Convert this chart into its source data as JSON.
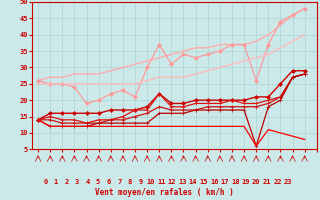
{
  "xlabel": "Vent moyen/en rafales ( km/h )",
  "xlim": [
    -0.5,
    23
  ],
  "ylim": [
    5,
    50
  ],
  "yticks": [
    5,
    10,
    15,
    20,
    25,
    30,
    35,
    40,
    45,
    50
  ],
  "xticks": [
    0,
    1,
    2,
    3,
    4,
    5,
    6,
    7,
    8,
    9,
    10,
    11,
    12,
    13,
    14,
    15,
    16,
    17,
    18,
    19,
    20,
    21,
    22,
    23
  ],
  "bg_color": "#cce9e9",
  "grid_color": "#aad4d4",
  "series": [
    {
      "label": "smooth_upper1",
      "color": "#ffaaaa",
      "lw": 1.0,
      "marker": null,
      "markersize": 0,
      "y": [
        26,
        27,
        27,
        28,
        28,
        28,
        29,
        30,
        31,
        32,
        33,
        34,
        35,
        36,
        36,
        37,
        37,
        37,
        38,
        40,
        43,
        46,
        48
      ]
    },
    {
      "label": "zigzag_light",
      "color": "#ff9999",
      "lw": 0.9,
      "marker": "D",
      "markersize": 2.0,
      "y": [
        26,
        25,
        25,
        24,
        19,
        20,
        22,
        23,
        21,
        30,
        37,
        31,
        34,
        33,
        34,
        35,
        37,
        37,
        26,
        37,
        44,
        46,
        48
      ]
    },
    {
      "label": "smooth_lower1",
      "color": "#ffbbbb",
      "lw": 1.0,
      "marker": null,
      "markersize": 0,
      "y": [
        25,
        25,
        25,
        25,
        25,
        25,
        25,
        25,
        25,
        26,
        27,
        27,
        27,
        28,
        29,
        30,
        31,
        32,
        33,
        34,
        36,
        38,
        40
      ]
    },
    {
      "label": "dark_rising",
      "color": "#cc0000",
      "lw": 1.0,
      "marker": "D",
      "markersize": 2.0,
      "y": [
        14,
        16,
        16,
        16,
        16,
        16,
        17,
        17,
        17,
        18,
        22,
        19,
        19,
        20,
        20,
        20,
        20,
        20,
        21,
        21,
        25,
        29,
        29
      ]
    },
    {
      "label": "dark_mid_zigzag",
      "color": "#dd1111",
      "lw": 0.9,
      "marker": "+",
      "markersize": 3.0,
      "y": [
        14,
        15,
        14,
        14,
        13,
        14,
        14,
        15,
        17,
        17,
        22,
        18,
        18,
        19,
        19,
        19,
        20,
        19,
        19,
        20,
        21,
        27,
        28
      ]
    },
    {
      "label": "dark_lower1",
      "color": "#cc1111",
      "lw": 0.9,
      "marker": "+",
      "markersize": 3.0,
      "y": [
        14,
        14,
        13,
        13,
        13,
        13,
        14,
        14,
        15,
        16,
        18,
        17,
        17,
        17,
        18,
        18,
        18,
        18,
        18,
        19,
        21,
        27,
        28
      ]
    },
    {
      "label": "dark_lower2",
      "color": "#bb0000",
      "lw": 0.9,
      "marker": "+",
      "markersize": 2.5,
      "y": [
        14,
        12,
        12,
        12,
        12,
        13,
        13,
        13,
        13,
        13,
        16,
        16,
        16,
        17,
        17,
        17,
        17,
        17,
        6,
        18,
        20,
        27,
        28
      ]
    },
    {
      "label": "dropping_line",
      "color": "#ff0000",
      "lw": 0.9,
      "marker": null,
      "markersize": 0,
      "y": [
        14,
        12,
        12,
        12,
        12,
        12,
        12,
        12,
        12,
        12,
        12,
        12,
        12,
        12,
        12,
        12,
        12,
        12,
        6,
        11,
        10,
        9,
        8
      ]
    }
  ],
  "wind_arrows_color": "#cc0000",
  "tick_color": "#cc0000",
  "axis_color": "#cc0000",
  "tick_fontsize": 5.0,
  "xlabel_fontsize": 5.5
}
